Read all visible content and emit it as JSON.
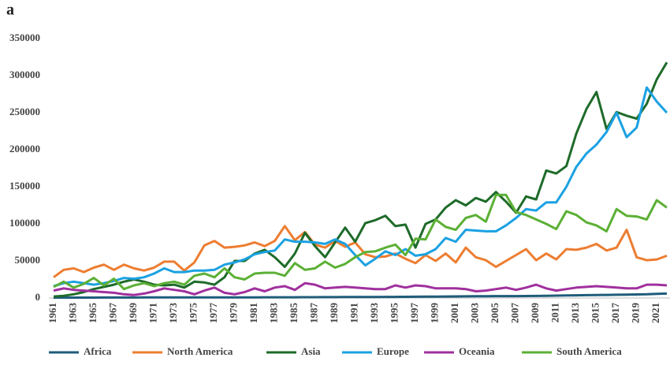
{
  "chart_data": {
    "type": "line",
    "title": "a",
    "x": [
      1961,
      1962,
      1963,
      1964,
      1965,
      1966,
      1967,
      1968,
      1969,
      1970,
      1971,
      1972,
      1973,
      1974,
      1975,
      1976,
      1977,
      1978,
      1979,
      1980,
      1981,
      1982,
      1983,
      1984,
      1985,
      1986,
      1987,
      1988,
      1989,
      1990,
      1991,
      1992,
      1993,
      1994,
      1995,
      1996,
      1997,
      1998,
      1999,
      2000,
      2001,
      2002,
      2003,
      2004,
      2005,
      2006,
      2007,
      2008,
      2009,
      2010,
      2011,
      2012,
      2013,
      2014,
      2015,
      2016,
      2017,
      2018,
      2019,
      2020,
      2021,
      2022
    ],
    "xlim": [
      1961,
      2022
    ],
    "xticks": [
      1961,
      1963,
      1965,
      1967,
      1969,
      1971,
      1973,
      1975,
      1977,
      1979,
      1981,
      1983,
      1985,
      1987,
      1989,
      1991,
      1993,
      1995,
      1997,
      1999,
      2001,
      2003,
      2005,
      2007,
      2009,
      2011,
      2013,
      2015,
      2017,
      2019,
      2021
    ],
    "ylim": [
      0,
      350000
    ],
    "yticks": [
      0,
      50000,
      100000,
      150000,
      200000,
      250000,
      300000,
      350000
    ],
    "grid": false,
    "legend": "bottom",
    "series": [
      {
        "name": "Africa",
        "color": "#1f5c7a",
        "values": [
          500,
          500,
          500,
          500,
          500,
          600,
          600,
          600,
          600,
          700,
          700,
          700,
          700,
          700,
          800,
          800,
          800,
          800,
          900,
          900,
          900,
          1000,
          1000,
          1000,
          1000,
          1100,
          1100,
          1200,
          1200,
          1300,
          1300,
          1400,
          1400,
          1500,
          1500,
          1600,
          1700,
          1800,
          1900,
          2000,
          2100,
          2200,
          2300,
          2400,
          2500,
          2500,
          2600,
          2700,
          2800,
          3000,
          3200,
          3400,
          3600,
          3800,
          4000,
          4200,
          4400,
          4600,
          4800,
          5000,
          5500,
          6000
        ]
      },
      {
        "name": "North America",
        "color": "#ed7d31",
        "values": [
          28000,
          38000,
          40000,
          35000,
          41000,
          45000,
          38000,
          45000,
          40000,
          37000,
          41000,
          49000,
          49000,
          37000,
          48000,
          71000,
          77000,
          68000,
          69000,
          71000,
          75000,
          70000,
          77000,
          97000,
          78000,
          89000,
          72000,
          68000,
          77000,
          69000,
          75000,
          59000,
          55000,
          56000,
          60000,
          53000,
          47000,
          58000,
          50000,
          60000,
          48000,
          68000,
          55000,
          51000,
          42000,
          50000,
          58000,
          66000,
          51000,
          60000,
          52000,
          66000,
          65000,
          68000,
          73000,
          64000,
          68000,
          92000,
          55000,
          51000,
          52000,
          57000
        ]
      },
      {
        "name": "Asia",
        "color": "#1e6b2a",
        "values": [
          2000,
          3000,
          5000,
          8000,
          12000,
          15000,
          18000,
          22000,
          25000,
          22000,
          18000,
          17000,
          18000,
          14000,
          22000,
          21000,
          18000,
          28000,
          50000,
          50000,
          60000,
          65000,
          55000,
          42000,
          60000,
          88000,
          70000,
          55000,
          75000,
          95000,
          76000,
          101000,
          105000,
          111000,
          97000,
          99000,
          68000,
          100000,
          106000,
          122000,
          132000,
          125000,
          135000,
          130000,
          143000,
          130000,
          115000,
          137000,
          133000,
          172000,
          168000,
          178000,
          222000,
          255000,
          278000,
          228000,
          251000,
          246000,
          242000,
          262000,
          295000,
          318000
        ]
      },
      {
        "name": "Europe",
        "color": "#1ba1e2",
        "values": [
          16000,
          20000,
          22000,
          20000,
          18000,
          20000,
          23000,
          27000,
          26000,
          28000,
          33000,
          40000,
          35000,
          35000,
          37000,
          37000,
          38000,
          45000,
          48000,
          52000,
          59000,
          62000,
          64000,
          79000,
          76000,
          76000,
          75000,
          73000,
          79000,
          73000,
          58000,
          44000,
          53000,
          63000,
          58000,
          66000,
          57000,
          59000,
          66000,
          81000,
          76000,
          92000,
          91000,
          90000,
          90000,
          98000,
          108000,
          120000,
          118000,
          129000,
          129000,
          150000,
          177000,
          195000,
          207000,
          224000,
          250000,
          217000,
          230000,
          284000,
          265000,
          250000
        ]
      },
      {
        "name": "Oceania",
        "color": "#a0309e",
        "values": [
          10000,
          13000,
          11000,
          10000,
          9000,
          8000,
          7000,
          5000,
          4000,
          6000,
          9000,
          13000,
          11000,
          9000,
          5000,
          10000,
          14000,
          7000,
          5000,
          8000,
          13000,
          9000,
          14000,
          16000,
          11000,
          20000,
          18000,
          13000,
          14000,
          15000,
          14000,
          13000,
          12000,
          12000,
          17000,
          14000,
          17000,
          16000,
          13000,
          13000,
          13000,
          12000,
          9000,
          10000,
          12000,
          14000,
          11000,
          14000,
          18000,
          13000,
          10000,
          12000,
          14000,
          15000,
          16000,
          15000,
          14000,
          13000,
          13000,
          18000,
          18000,
          17000
        ]
      },
      {
        "name": "South America",
        "color": "#5bb035",
        "values": [
          15000,
          22000,
          14000,
          19000,
          27000,
          17000,
          26000,
          12000,
          17000,
          20000,
          16000,
          20000,
          22000,
          18000,
          30000,
          33000,
          28000,
          40000,
          28000,
          25000,
          33000,
          34000,
          34000,
          30000,
          47000,
          38000,
          40000,
          49000,
          41000,
          46000,
          55000,
          62000,
          63000,
          68000,
          72000,
          58000,
          80000,
          79000,
          106000,
          96000,
          92000,
          108000,
          112000,
          103000,
          139000,
          139000,
          116000,
          112000,
          106000,
          100000,
          93000,
          117000,
          112000,
          102000,
          98000,
          90000,
          120000,
          111000,
          110000,
          106000,
          132000,
          122000
        ]
      }
    ]
  }
}
